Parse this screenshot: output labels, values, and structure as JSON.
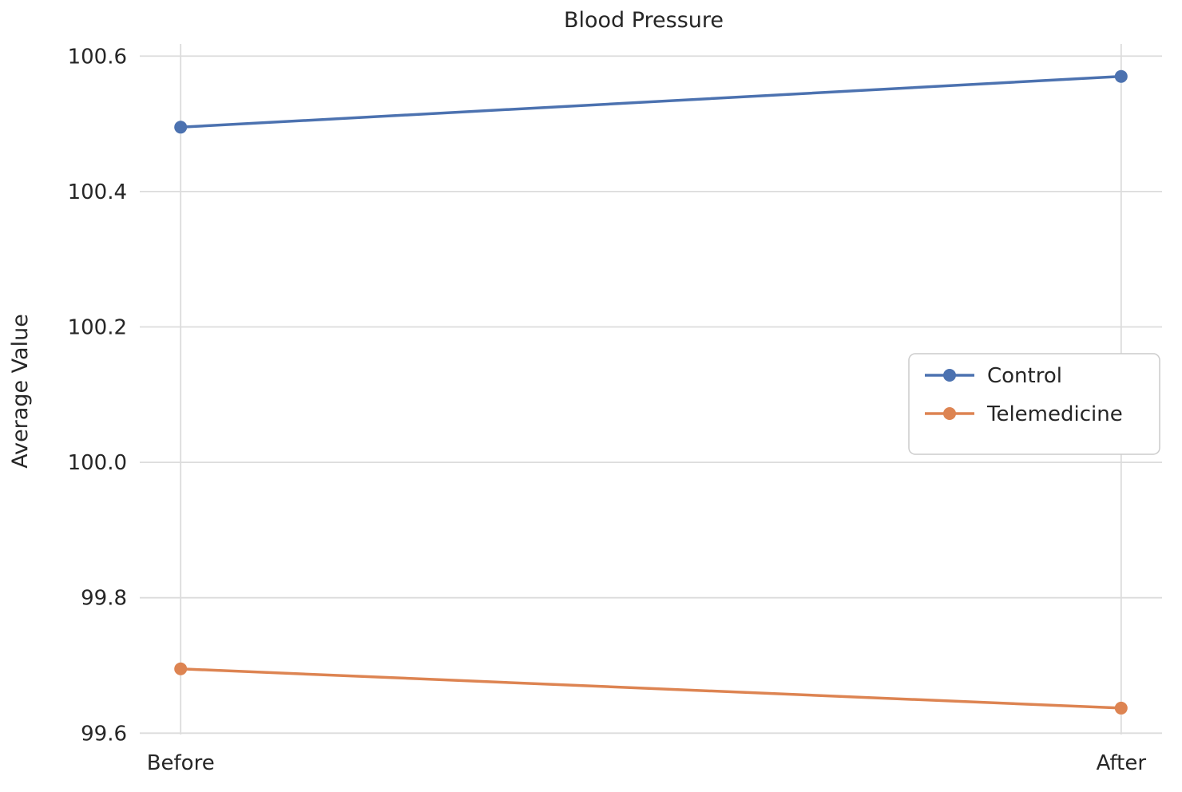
{
  "chart_data": {
    "type": "line",
    "title": "Blood Pressure",
    "xlabel": "",
    "ylabel": "Average Value",
    "categories": [
      "Before",
      "After"
    ],
    "series": [
      {
        "name": "Control",
        "color": "#4C72B0",
        "values": [
          100.495,
          100.57
        ]
      },
      {
        "name": "Telemedicine",
        "color": "#DD8452",
        "values": [
          99.695,
          99.637
        ]
      }
    ],
    "ylim": [
      99.598,
      100.618
    ],
    "yticks": [
      99.6,
      99.8,
      100.0,
      100.2,
      100.4,
      100.6
    ],
    "grid": true,
    "legend_position": "center right",
    "grid_color": "#dcdcdc",
    "text_color": "#262626",
    "legend_border_color": "#cccccc"
  }
}
